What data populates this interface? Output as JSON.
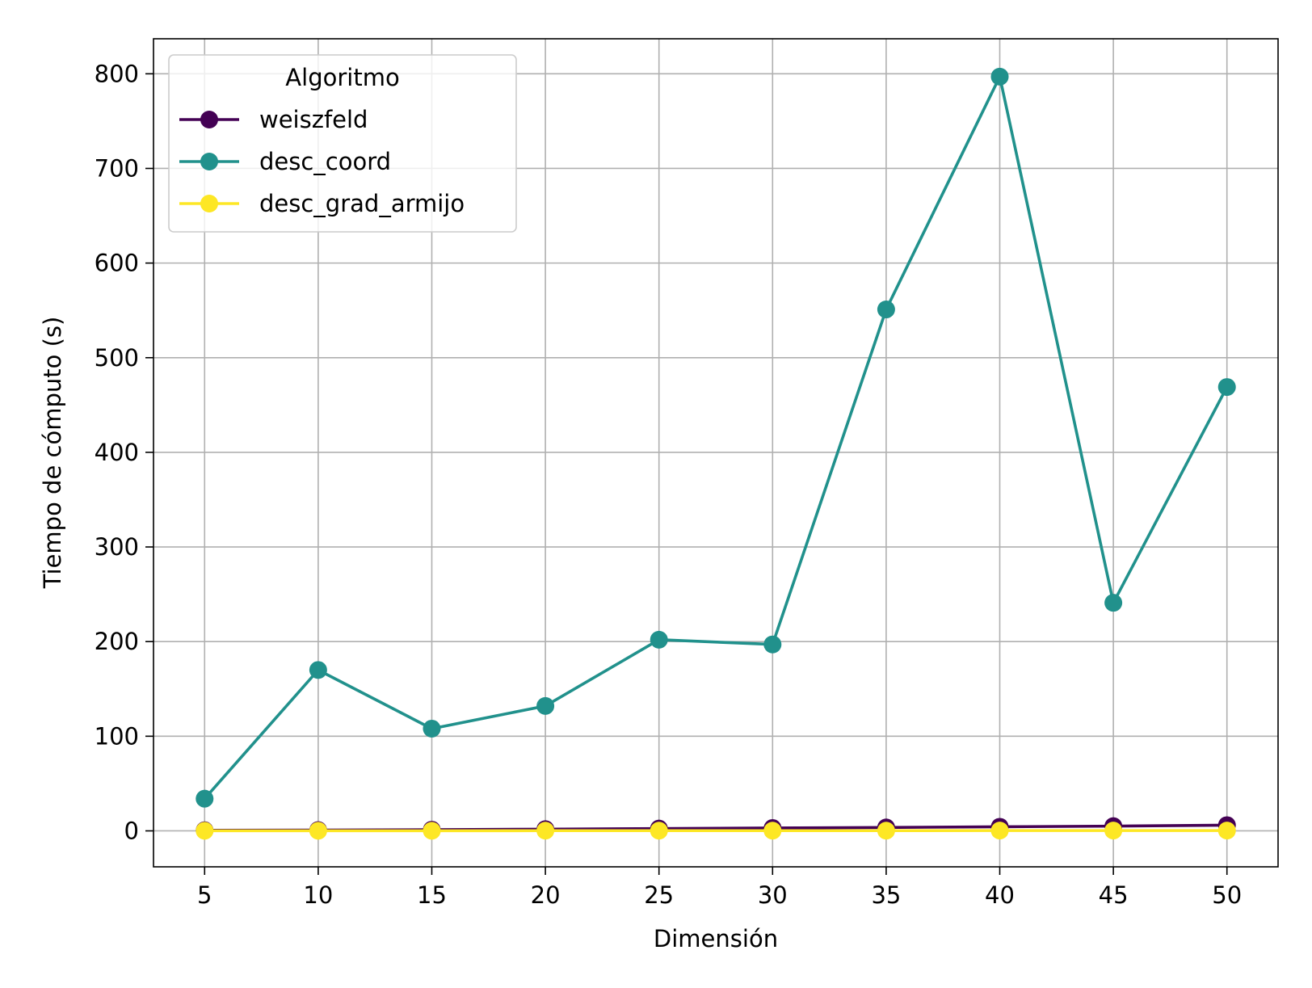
{
  "chart_data": {
    "type": "line",
    "xlabel": "Dimensión",
    "ylabel": "Tiempo de cómputo (s)",
    "x": [
      5,
      10,
      15,
      20,
      25,
      30,
      35,
      40,
      45,
      50
    ],
    "xticks": [
      "5",
      "10",
      "15",
      "20",
      "25",
      "30",
      "35",
      "40",
      "45",
      "50"
    ],
    "yticks": [
      "0",
      "100",
      "200",
      "300",
      "400",
      "500",
      "600",
      "700",
      "800"
    ],
    "xlim": [
      2.75,
      52.25
    ],
    "ylim": [
      -38,
      837
    ],
    "grid": true,
    "legend": {
      "title": "Algoritmo",
      "placement": "upper-left"
    },
    "series": [
      {
        "name": "weiszfeld",
        "color": "#440154",
        "values": [
          0.6,
          0.8,
          1.2,
          1.8,
          2.4,
          3.0,
          3.6,
          4.3,
          5.0,
          6.0
        ]
      },
      {
        "name": "desc_coord",
        "color": "#21918c",
        "values": [
          34,
          170,
          108,
          132,
          202,
          197,
          551,
          797,
          241,
          469
        ]
      },
      {
        "name": "desc_grad_armijo",
        "color": "#fde725",
        "values": [
          0.1,
          0.1,
          0.1,
          0.2,
          0.2,
          0.2,
          0.2,
          0.3,
          0.3,
          0.3
        ]
      }
    ]
  }
}
